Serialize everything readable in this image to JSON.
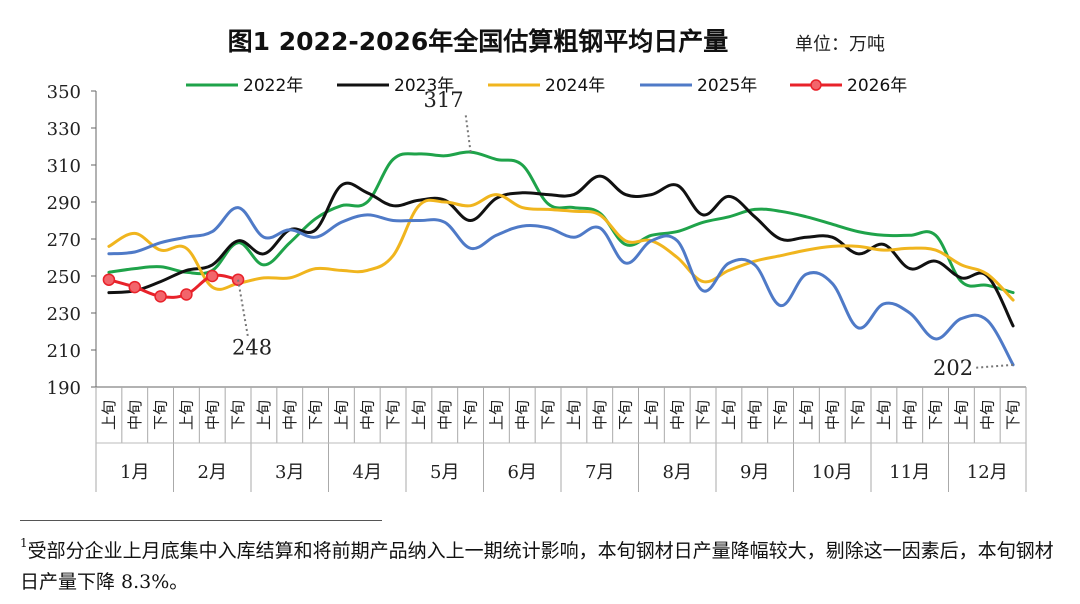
{
  "chart_data": {
    "type": "line",
    "title": "图1 2022-2026年全国估算粗钢平均日产量",
    "unit_label": "单位：万吨",
    "ylim": [
      190,
      350
    ],
    "yticks": [
      190,
      210,
      230,
      250,
      270,
      290,
      310,
      330,
      350
    ],
    "x_sub_labels": [
      "上旬",
      "中旬",
      "下旬"
    ],
    "months": [
      "1月",
      "2月",
      "3月",
      "4月",
      "5月",
      "6月",
      "7月",
      "8月",
      "9月",
      "10月",
      "11月",
      "12月"
    ],
    "series": [
      {
        "name": "2022年",
        "color": "#1fa34a",
        "markers": false,
        "values": [
          252,
          254,
          255,
          252,
          253,
          268,
          256,
          268,
          281,
          288,
          290,
          313,
          316,
          315,
          317,
          313,
          310,
          289,
          287,
          284,
          267,
          272,
          274,
          279,
          282,
          286,
          285,
          282,
          278,
          274,
          272,
          272,
          272,
          247,
          245,
          241
        ]
      },
      {
        "name": "2023年",
        "color": "#111111",
        "markers": false,
        "values": [
          241,
          242,
          247,
          253,
          256,
          269,
          262,
          275,
          275,
          299,
          295,
          288,
          291,
          291,
          280,
          292,
          295,
          294,
          294,
          304,
          294,
          294,
          299,
          283,
          293,
          282,
          270,
          271,
          271,
          262,
          267,
          254,
          258,
          249,
          250,
          223
        ]
      },
      {
        "name": "2024年",
        "color": "#f0b51e",
        "markers": false,
        "values": [
          266,
          273,
          264,
          265,
          244,
          246,
          249,
          249,
          254,
          253,
          253,
          261,
          288,
          290,
          288,
          294,
          287,
          286,
          285,
          283,
          269,
          269,
          260,
          247,
          253,
          258,
          261,
          264,
          266,
          266,
          264,
          265,
          264,
          256,
          251,
          237
        ]
      },
      {
        "name": "2025年",
        "color": "#4f7ac7",
        "markers": false,
        "values": [
          262,
          263,
          268,
          271,
          274,
          287,
          271,
          275,
          271,
          279,
          283,
          280,
          280,
          279,
          265,
          272,
          277,
          276,
          271,
          276,
          257,
          269,
          269,
          242,
          257,
          256,
          234,
          251,
          246,
          222,
          235,
          230,
          216,
          227,
          226,
          202
        ]
      },
      {
        "name": "2026年",
        "color": "#e8222a",
        "markers": true,
        "values": [
          248,
          244,
          239,
          240,
          250,
          248
        ]
      }
    ],
    "annotations": [
      {
        "text": "317",
        "series": "2022年",
        "index": 14
      },
      {
        "text": "248",
        "series": "2026年",
        "index": 5
      },
      {
        "text": "202",
        "series": "2025年",
        "index": 35
      }
    ]
  },
  "footnote": {
    "marker": "1",
    "text": "受部分企业上月底集中入库结算和将前期产品纳入上一期统计影响，本旬钢材日产量降幅较大，剔除这一因素后，本旬钢材日产量下降 8.3%。"
  }
}
